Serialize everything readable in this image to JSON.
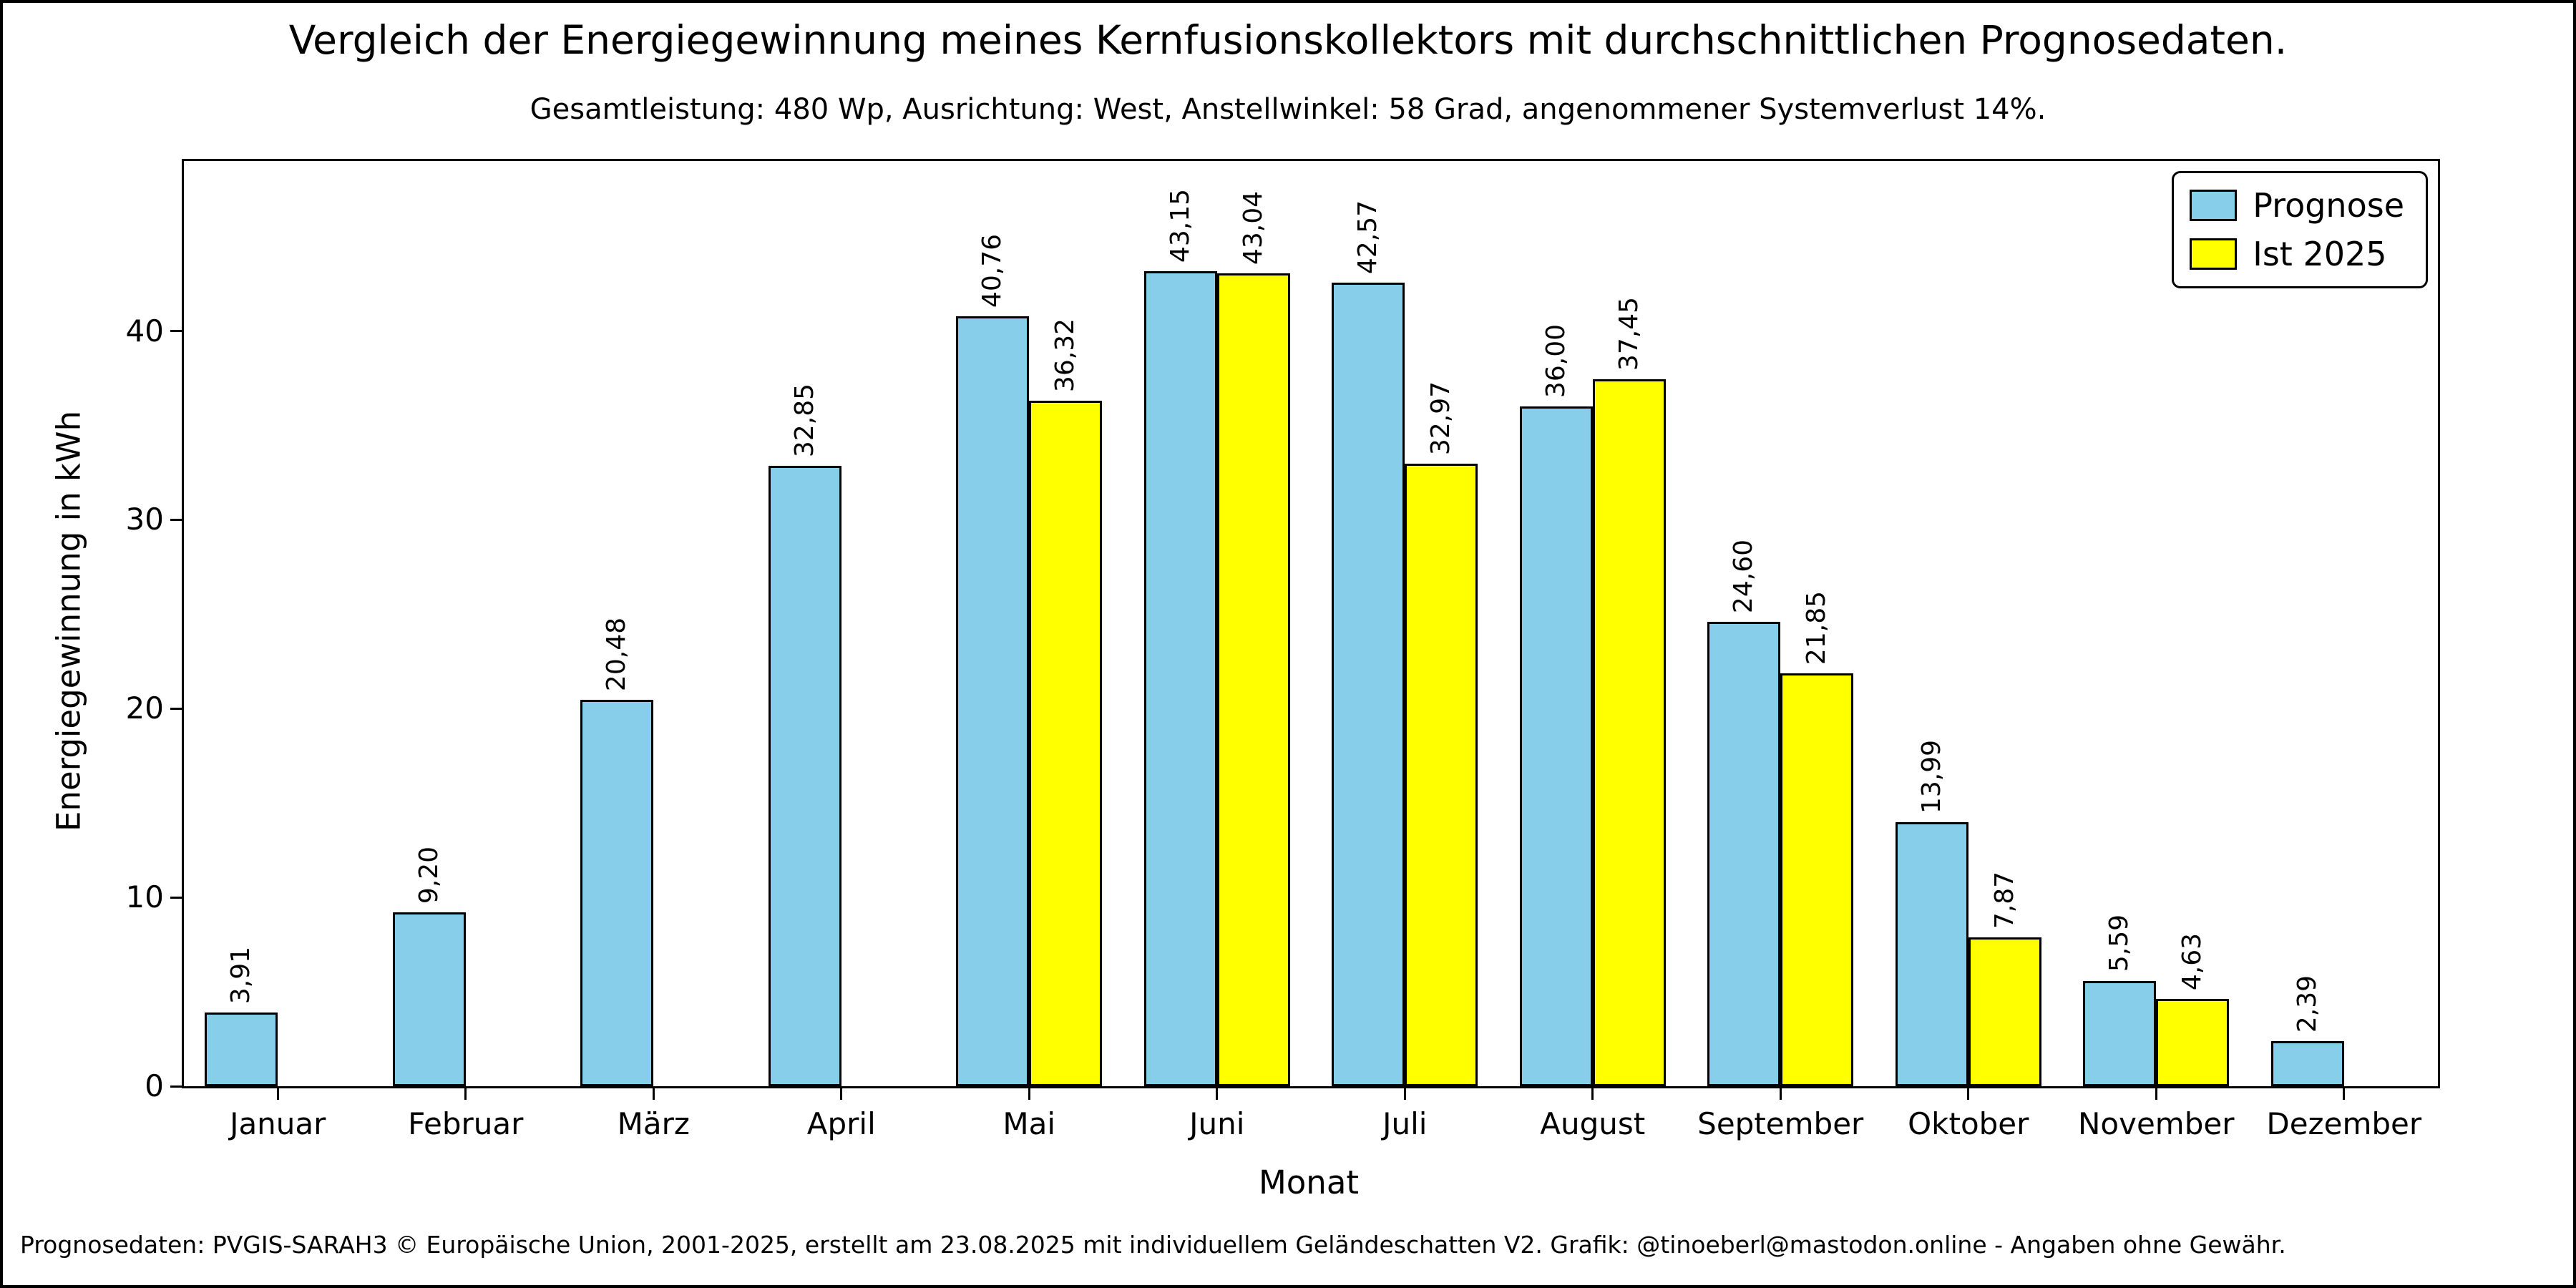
{
  "title": "Vergleich der Energiegewinnung meines Kernfusionskollektors mit durchschnittlichen Prognosedaten.",
  "subtitle": "Gesamtleistung: 480 Wp, Ausrichtung: West, Anstellwinkel: 58 Grad, angenommener Systemverlust 14%.",
  "footer": "Prognosedaten: PVGIS-SARAH3 © Europäische Union, 2001-2025, erstellt am 23.08.2025 mit individuellem Geländeschatten V2. Grafik: @tinoeberl@mastodon.online - Angaben ohne Gewähr.",
  "chart_data": {
    "type": "bar",
    "categories": [
      "Januar",
      "Februar",
      "März",
      "April",
      "Mai",
      "Juni",
      "Juli",
      "August",
      "September",
      "Oktober",
      "November",
      "Dezember"
    ],
    "series": [
      {
        "name": "Prognose",
        "color": "#87CEEB",
        "values": [
          3.91,
          9.2,
          20.48,
          32.85,
          40.76,
          43.15,
          42.57,
          36.0,
          24.6,
          13.99,
          5.59,
          2.39
        ]
      },
      {
        "name": "Ist 2025",
        "color": "#FFFF00",
        "values": [
          null,
          null,
          null,
          null,
          36.32,
          43.04,
          32.97,
          37.45,
          21.85,
          7.87,
          4.63,
          null
        ]
      }
    ],
    "xlabel": "Monat",
    "ylabel": "Energiegewinnung in kWh",
    "ylim": [
      0,
      49
    ],
    "yticks": [
      0,
      10,
      20,
      30,
      40
    ],
    "legend_position": "upper right",
    "grid": false,
    "value_label_decimal_separator": ","
  }
}
